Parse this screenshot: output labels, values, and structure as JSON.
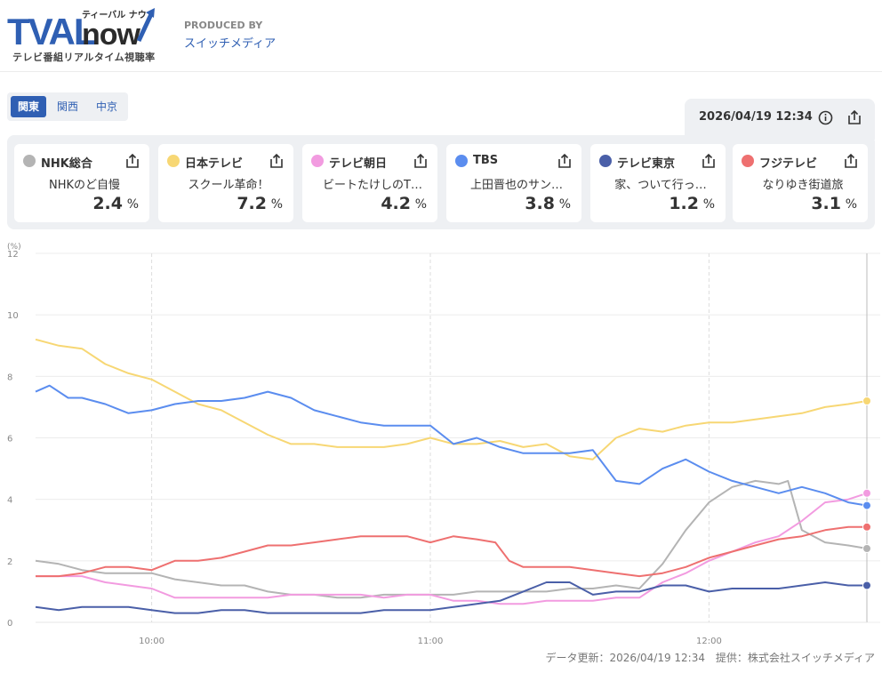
{
  "header": {
    "logo_main": "TVALnow",
    "logo_kana": "ティーバル ナウ",
    "logo_tagline": "テレビ番組リアルタイム視聴率",
    "produced_by": "PRODUCED BY",
    "producer": "スイッチメディア"
  },
  "regions": [
    {
      "label": "関東",
      "active": true
    },
    {
      "label": "関西",
      "active": false
    },
    {
      "label": "中京",
      "active": false
    }
  ],
  "datetime": "2026/04/19 12:34",
  "icons": {
    "info": "info-icon",
    "share": "share-icon"
  },
  "channels": [
    {
      "name": "NHK総合",
      "color": "#b4b4b4",
      "program": "NHKのど自慢",
      "rating": "2.4",
      "unit": "%"
    },
    {
      "name": "日本テレビ",
      "color": "#f7d774",
      "program": "スクール革命！",
      "rating": "7.2",
      "unit": "%"
    },
    {
      "name": "テレビ朝日",
      "color": "#f29be0",
      "program": "ビートたけしのT…",
      "rating": "4.2",
      "unit": "%"
    },
    {
      "name": "TBS",
      "color": "#5b8def",
      "program": "上田晋也のサン…",
      "rating": "3.8",
      "unit": "%"
    },
    {
      "name": "テレビ東京",
      "color": "#4a5fa8",
      "program": "家、ついて行っ…",
      "rating": "1.2",
      "unit": "%"
    },
    {
      "name": "フジテレビ",
      "color": "#ee7070",
      "program": "なりゆき街道旅",
      "rating": "3.1",
      "unit": "%"
    }
  ],
  "chart_data": {
    "type": "line",
    "ylabel": "(%)",
    "ylim": [
      0,
      12
    ],
    "yticks": [
      0,
      2,
      4,
      6,
      8,
      10,
      12
    ],
    "xlim": [
      "09:35",
      "12:34"
    ],
    "xticks": [
      "10:00",
      "11:00",
      "12:00"
    ],
    "grid": true,
    "series": [
      {
        "name": "NHK総合",
        "color": "#b4b4b4",
        "points": [
          [
            "09:35",
            2.0
          ],
          [
            "09:40",
            1.9
          ],
          [
            "09:45",
            1.7
          ],
          [
            "09:50",
            1.6
          ],
          [
            "09:55",
            1.6
          ],
          [
            "10:00",
            1.6
          ],
          [
            "10:05",
            1.4
          ],
          [
            "10:10",
            1.3
          ],
          [
            "10:15",
            1.2
          ],
          [
            "10:20",
            1.2
          ],
          [
            "10:25",
            1.0
          ],
          [
            "10:30",
            0.9
          ],
          [
            "10:35",
            0.9
          ],
          [
            "10:40",
            0.8
          ],
          [
            "10:45",
            0.8
          ],
          [
            "10:50",
            0.9
          ],
          [
            "10:55",
            0.9
          ],
          [
            "11:00",
            0.9
          ],
          [
            "11:05",
            0.9
          ],
          [
            "11:10",
            1.0
          ],
          [
            "11:15",
            1.0
          ],
          [
            "11:20",
            1.0
          ],
          [
            "11:25",
            1.0
          ],
          [
            "11:30",
            1.1
          ],
          [
            "11:35",
            1.1
          ],
          [
            "11:40",
            1.2
          ],
          [
            "11:45",
            1.1
          ],
          [
            "11:50",
            1.9
          ],
          [
            "11:55",
            3.0
          ],
          [
            "12:00",
            3.9
          ],
          [
            "12:05",
            4.4
          ],
          [
            "12:10",
            4.6
          ],
          [
            "12:15",
            4.5
          ],
          [
            "12:17",
            4.6
          ],
          [
            "12:20",
            3.0
          ],
          [
            "12:25",
            2.6
          ],
          [
            "12:30",
            2.5
          ],
          [
            "12:34",
            2.4
          ]
        ]
      },
      {
        "name": "日本テレビ",
        "color": "#f7d774",
        "points": [
          [
            "09:35",
            9.2
          ],
          [
            "09:40",
            9.0
          ],
          [
            "09:45",
            8.9
          ],
          [
            "09:50",
            8.4
          ],
          [
            "09:55",
            8.1
          ],
          [
            "10:00",
            7.9
          ],
          [
            "10:05",
            7.5
          ],
          [
            "10:10",
            7.1
          ],
          [
            "10:15",
            6.9
          ],
          [
            "10:20",
            6.5
          ],
          [
            "10:25",
            6.1
          ],
          [
            "10:30",
            5.8
          ],
          [
            "10:35",
            5.8
          ],
          [
            "10:40",
            5.7
          ],
          [
            "10:45",
            5.7
          ],
          [
            "10:50",
            5.7
          ],
          [
            "10:55",
            5.8
          ],
          [
            "11:00",
            6.0
          ],
          [
            "11:05",
            5.8
          ],
          [
            "11:10",
            5.8
          ],
          [
            "11:15",
            5.9
          ],
          [
            "11:20",
            5.7
          ],
          [
            "11:25",
            5.8
          ],
          [
            "11:30",
            5.4
          ],
          [
            "11:35",
            5.3
          ],
          [
            "11:40",
            6.0
          ],
          [
            "11:45",
            6.3
          ],
          [
            "11:50",
            6.2
          ],
          [
            "11:55",
            6.4
          ],
          [
            "12:00",
            6.5
          ],
          [
            "12:05",
            6.5
          ],
          [
            "12:10",
            6.6
          ],
          [
            "12:15",
            6.7
          ],
          [
            "12:20",
            6.8
          ],
          [
            "12:25",
            7.0
          ],
          [
            "12:30",
            7.1
          ],
          [
            "12:34",
            7.2
          ]
        ]
      },
      {
        "name": "テレビ朝日",
        "color": "#f29be0",
        "points": [
          [
            "09:35",
            1.5
          ],
          [
            "09:40",
            1.5
          ],
          [
            "09:45",
            1.5
          ],
          [
            "09:50",
            1.3
          ],
          [
            "09:55",
            1.2
          ],
          [
            "10:00",
            1.1
          ],
          [
            "10:05",
            0.8
          ],
          [
            "10:10",
            0.8
          ],
          [
            "10:15",
            0.8
          ],
          [
            "10:20",
            0.8
          ],
          [
            "10:25",
            0.8
          ],
          [
            "10:30",
            0.9
          ],
          [
            "10:35",
            0.9
          ],
          [
            "10:40",
            0.9
          ],
          [
            "10:45",
            0.9
          ],
          [
            "10:50",
            0.8
          ],
          [
            "10:55",
            0.9
          ],
          [
            "11:00",
            0.9
          ],
          [
            "11:05",
            0.7
          ],
          [
            "11:10",
            0.7
          ],
          [
            "11:15",
            0.6
          ],
          [
            "11:20",
            0.6
          ],
          [
            "11:25",
            0.7
          ],
          [
            "11:30",
            0.7
          ],
          [
            "11:35",
            0.7
          ],
          [
            "11:40",
            0.8
          ],
          [
            "11:45",
            0.8
          ],
          [
            "11:50",
            1.3
          ],
          [
            "11:55",
            1.6
          ],
          [
            "12:00",
            2.0
          ],
          [
            "12:05",
            2.3
          ],
          [
            "12:10",
            2.6
          ],
          [
            "12:15",
            2.8
          ],
          [
            "12:20",
            3.3
          ],
          [
            "12:25",
            3.9
          ],
          [
            "12:30",
            4.0
          ],
          [
            "12:34",
            4.2
          ]
        ]
      },
      {
        "name": "TBS",
        "color": "#5b8def",
        "points": [
          [
            "09:35",
            7.5
          ],
          [
            "09:38",
            7.7
          ],
          [
            "09:42",
            7.3
          ],
          [
            "09:45",
            7.3
          ],
          [
            "09:50",
            7.1
          ],
          [
            "09:55",
            6.8
          ],
          [
            "10:00",
            6.9
          ],
          [
            "10:05",
            7.1
          ],
          [
            "10:10",
            7.2
          ],
          [
            "10:15",
            7.2
          ],
          [
            "10:20",
            7.3
          ],
          [
            "10:25",
            7.5
          ],
          [
            "10:30",
            7.3
          ],
          [
            "10:35",
            6.9
          ],
          [
            "10:40",
            6.7
          ],
          [
            "10:45",
            6.5
          ],
          [
            "10:50",
            6.4
          ],
          [
            "10:55",
            6.4
          ],
          [
            "11:00",
            6.4
          ],
          [
            "11:05",
            5.8
          ],
          [
            "11:10",
            6.0
          ],
          [
            "11:15",
            5.7
          ],
          [
            "11:20",
            5.5
          ],
          [
            "11:25",
            5.5
          ],
          [
            "11:30",
            5.5
          ],
          [
            "11:35",
            5.6
          ],
          [
            "11:40",
            4.6
          ],
          [
            "11:45",
            4.5
          ],
          [
            "11:50",
            5.0
          ],
          [
            "11:55",
            5.3
          ],
          [
            "12:00",
            4.9
          ],
          [
            "12:05",
            4.6
          ],
          [
            "12:10",
            4.4
          ],
          [
            "12:15",
            4.2
          ],
          [
            "12:20",
            4.4
          ],
          [
            "12:25",
            4.2
          ],
          [
            "12:30",
            3.9
          ],
          [
            "12:34",
            3.8
          ]
        ]
      },
      {
        "name": "テレビ東京",
        "color": "#4a5fa8",
        "points": [
          [
            "09:35",
            0.5
          ],
          [
            "09:40",
            0.4
          ],
          [
            "09:45",
            0.5
          ],
          [
            "09:50",
            0.5
          ],
          [
            "09:55",
            0.5
          ],
          [
            "10:00",
            0.4
          ],
          [
            "10:05",
            0.3
          ],
          [
            "10:10",
            0.3
          ],
          [
            "10:15",
            0.4
          ],
          [
            "10:20",
            0.4
          ],
          [
            "10:25",
            0.3
          ],
          [
            "10:30",
            0.3
          ],
          [
            "10:35",
            0.3
          ],
          [
            "10:40",
            0.3
          ],
          [
            "10:45",
            0.3
          ],
          [
            "10:50",
            0.4
          ],
          [
            "10:55",
            0.4
          ],
          [
            "11:00",
            0.4
          ],
          [
            "11:05",
            0.5
          ],
          [
            "11:10",
            0.6
          ],
          [
            "11:15",
            0.7
          ],
          [
            "11:20",
            1.0
          ],
          [
            "11:25",
            1.3
          ],
          [
            "11:30",
            1.3
          ],
          [
            "11:35",
            0.9
          ],
          [
            "11:40",
            1.0
          ],
          [
            "11:45",
            1.0
          ],
          [
            "11:50",
            1.2
          ],
          [
            "11:55",
            1.2
          ],
          [
            "12:00",
            1.0
          ],
          [
            "12:05",
            1.1
          ],
          [
            "12:10",
            1.1
          ],
          [
            "12:15",
            1.1
          ],
          [
            "12:20",
            1.2
          ],
          [
            "12:25",
            1.3
          ],
          [
            "12:30",
            1.2
          ],
          [
            "12:34",
            1.2
          ]
        ]
      },
      {
        "name": "フジテレビ",
        "color": "#ee7070",
        "points": [
          [
            "09:35",
            1.5
          ],
          [
            "09:40",
            1.5
          ],
          [
            "09:45",
            1.6
          ],
          [
            "09:50",
            1.8
          ],
          [
            "09:55",
            1.8
          ],
          [
            "10:00",
            1.7
          ],
          [
            "10:05",
            2.0
          ],
          [
            "10:10",
            2.0
          ],
          [
            "10:15",
            2.1
          ],
          [
            "10:20",
            2.3
          ],
          [
            "10:25",
            2.5
          ],
          [
            "10:30",
            2.5
          ],
          [
            "10:35",
            2.6
          ],
          [
            "10:40",
            2.7
          ],
          [
            "10:45",
            2.8
          ],
          [
            "10:50",
            2.8
          ],
          [
            "10:55",
            2.8
          ],
          [
            "11:00",
            2.6
          ],
          [
            "11:05",
            2.8
          ],
          [
            "11:10",
            2.7
          ],
          [
            "11:14",
            2.6
          ],
          [
            "11:17",
            2.0
          ],
          [
            "11:20",
            1.8
          ],
          [
            "11:25",
            1.8
          ],
          [
            "11:30",
            1.8
          ],
          [
            "11:35",
            1.7
          ],
          [
            "11:40",
            1.6
          ],
          [
            "11:45",
            1.5
          ],
          [
            "11:50",
            1.6
          ],
          [
            "11:55",
            1.8
          ],
          [
            "12:00",
            2.1
          ],
          [
            "12:05",
            2.3
          ],
          [
            "12:10",
            2.5
          ],
          [
            "12:15",
            2.7
          ],
          [
            "12:20",
            2.8
          ],
          [
            "12:25",
            3.0
          ],
          [
            "12:30",
            3.1
          ],
          [
            "12:34",
            3.1
          ]
        ]
      }
    ]
  },
  "footer": {
    "updated": "データ更新：2026/04/19 12:34",
    "provider": "提供：株式会社スイッチメディア"
  }
}
